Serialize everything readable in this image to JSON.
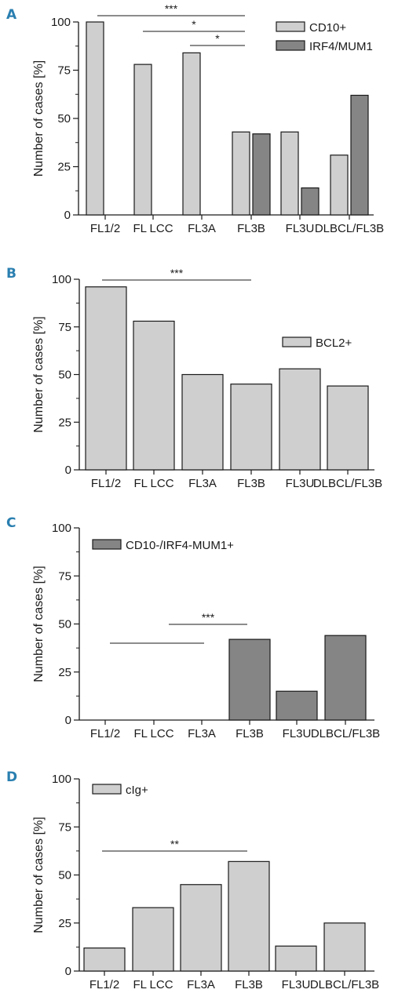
{
  "colors": {
    "light_bar": "#cfcfcf",
    "dark_bar": "#858585",
    "stroke": "#1a1a1a",
    "panel_letter": "#2a7fb0"
  },
  "chart_data": [
    {
      "panel": "A",
      "type": "bar",
      "categories": [
        "FL1/2",
        "FL LCC",
        "FL3A",
        "FL3B",
        "FL3U",
        "DLBCL/FL3B"
      ],
      "series": [
        {
          "name": "CD10+",
          "color": "light",
          "values": [
            100,
            78,
            84,
            43,
            43,
            31
          ]
        },
        {
          "name": "IRF4/MUM1",
          "color": "dark",
          "values": [
            0,
            0,
            0,
            42,
            14,
            62
          ]
        }
      ],
      "ylabel": "Number of cases [%]",
      "ylim": [
        0,
        100
      ],
      "yticks": [
        0,
        25,
        50,
        75,
        100
      ],
      "legend": "top-right",
      "significance": [
        {
          "from": "FL1/2",
          "to": "FL3B",
          "label": "***"
        },
        {
          "from": "FL LCC",
          "to": "FL3B",
          "label": "*"
        },
        {
          "from": "FL3A",
          "to": "FL3B",
          "label": "*"
        }
      ]
    },
    {
      "panel": "B",
      "type": "bar",
      "categories": [
        "FL1/2",
        "FL LCC",
        "FL3A",
        "FL3B",
        "FL3U",
        "DLBCL/FL3B"
      ],
      "series": [
        {
          "name": "BCL2+",
          "color": "light",
          "values": [
            96,
            78,
            50,
            45,
            53,
            44
          ]
        }
      ],
      "ylabel": "Number of cases [%]",
      "ylim": [
        0,
        100
      ],
      "yticks": [
        0,
        25,
        50,
        75,
        100
      ],
      "legend": "right",
      "significance": [
        {
          "from": "FL1/2",
          "to": "FL3B",
          "label": "***"
        }
      ]
    },
    {
      "panel": "C",
      "type": "bar",
      "categories": [
        "FL1/2",
        "FL LCC",
        "FL3A",
        "FL3B",
        "FL3U",
        "DLBCL/FL3B"
      ],
      "series": [
        {
          "name": "CD10-/IRF4-MUM1+",
          "color": "dark",
          "values": [
            0,
            0,
            0,
            42,
            15,
            44
          ]
        }
      ],
      "ylabel": "Number of cases [%]",
      "ylim": [
        0,
        100
      ],
      "yticks": [
        0,
        25,
        50,
        75,
        100
      ],
      "legend": "top-left",
      "significance": [
        {
          "from": "FL LCC",
          "to": "FL3B",
          "label": "***"
        },
        {
          "from": "FL1/2",
          "to": "FL3A",
          "label": ""
        }
      ]
    },
    {
      "panel": "D",
      "type": "bar",
      "categories": [
        "FL1/2",
        "FL LCC",
        "FL3A",
        "FL3B",
        "FL3U",
        "DLBCL/FL3B"
      ],
      "series": [
        {
          "name": "cIg+",
          "color": "light",
          "values": [
            12,
            33,
            45,
            57,
            13,
            25
          ]
        }
      ],
      "ylabel": "Number of cases [%]",
      "ylim": [
        0,
        100
      ],
      "yticks": [
        0,
        25,
        50,
        75,
        100
      ],
      "legend": "top-left",
      "significance": [
        {
          "from": "FL1/2",
          "to": "FL3B",
          "label": "**"
        }
      ]
    }
  ]
}
